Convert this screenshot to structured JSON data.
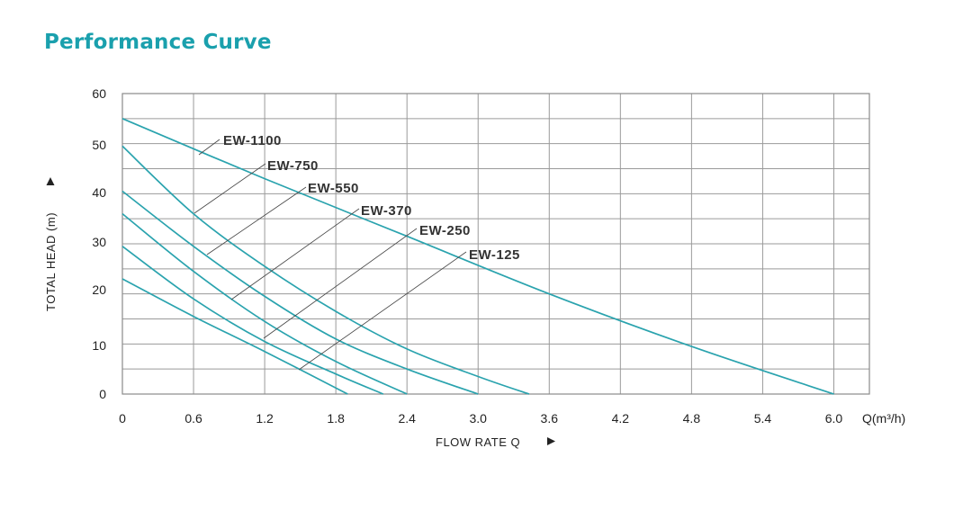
{
  "page": {
    "title": "Performance Curve"
  },
  "chart_data": {
    "type": "line",
    "xlabel": "FLOW RATE Q",
    "ylabel": "TOTAL HEAD (m)",
    "x_unit": "Q(m³/h)",
    "xlim": [
      0,
      6.3
    ],
    "ylim": [
      0,
      60
    ],
    "x_ticks": [
      "0",
      "0.6",
      "1.2",
      "1.8",
      "2.4",
      "3.0",
      "3.6",
      "4.2",
      "4.8",
      "5.4",
      "6.0"
    ],
    "y_ticks": [
      "0",
      "10",
      "20",
      "30",
      "40",
      "50",
      "60"
    ],
    "grid": true,
    "line_color": "#2aa3ae",
    "series": [
      {
        "name": "EW-1100",
        "x": [
          0,
          1.2,
          2.4,
          3.6,
          4.8,
          6.0
        ],
        "y": [
          55,
          43,
          31.5,
          20,
          9.5,
          0
        ]
      },
      {
        "name": "EW-750",
        "x": [
          0,
          0.6,
          1.2,
          1.8,
          2.4,
          3.0,
          3.43
        ],
        "y": [
          49.5,
          36,
          25.5,
          16.5,
          9,
          3.5,
          0
        ]
      },
      {
        "name": "EW-550",
        "x": [
          0,
          0.6,
          1.2,
          1.8,
          2.4,
          3.0
        ],
        "y": [
          40.5,
          29.5,
          19.5,
          11,
          5,
          0
        ]
      },
      {
        "name": "EW-370",
        "x": [
          0,
          0.6,
          1.2,
          1.8,
          2.4
        ],
        "y": [
          36,
          24.5,
          14.5,
          6.5,
          0
        ]
      },
      {
        "name": "EW-250",
        "x": [
          0,
          0.6,
          1.2,
          1.8,
          2.2
        ],
        "y": [
          29.5,
          19,
          10.5,
          4,
          0
        ]
      },
      {
        "name": "EW-125",
        "x": [
          0,
          0.6,
          1.2,
          1.9
        ],
        "y": [
          23,
          15.5,
          8.5,
          0
        ]
      }
    ]
  }
}
